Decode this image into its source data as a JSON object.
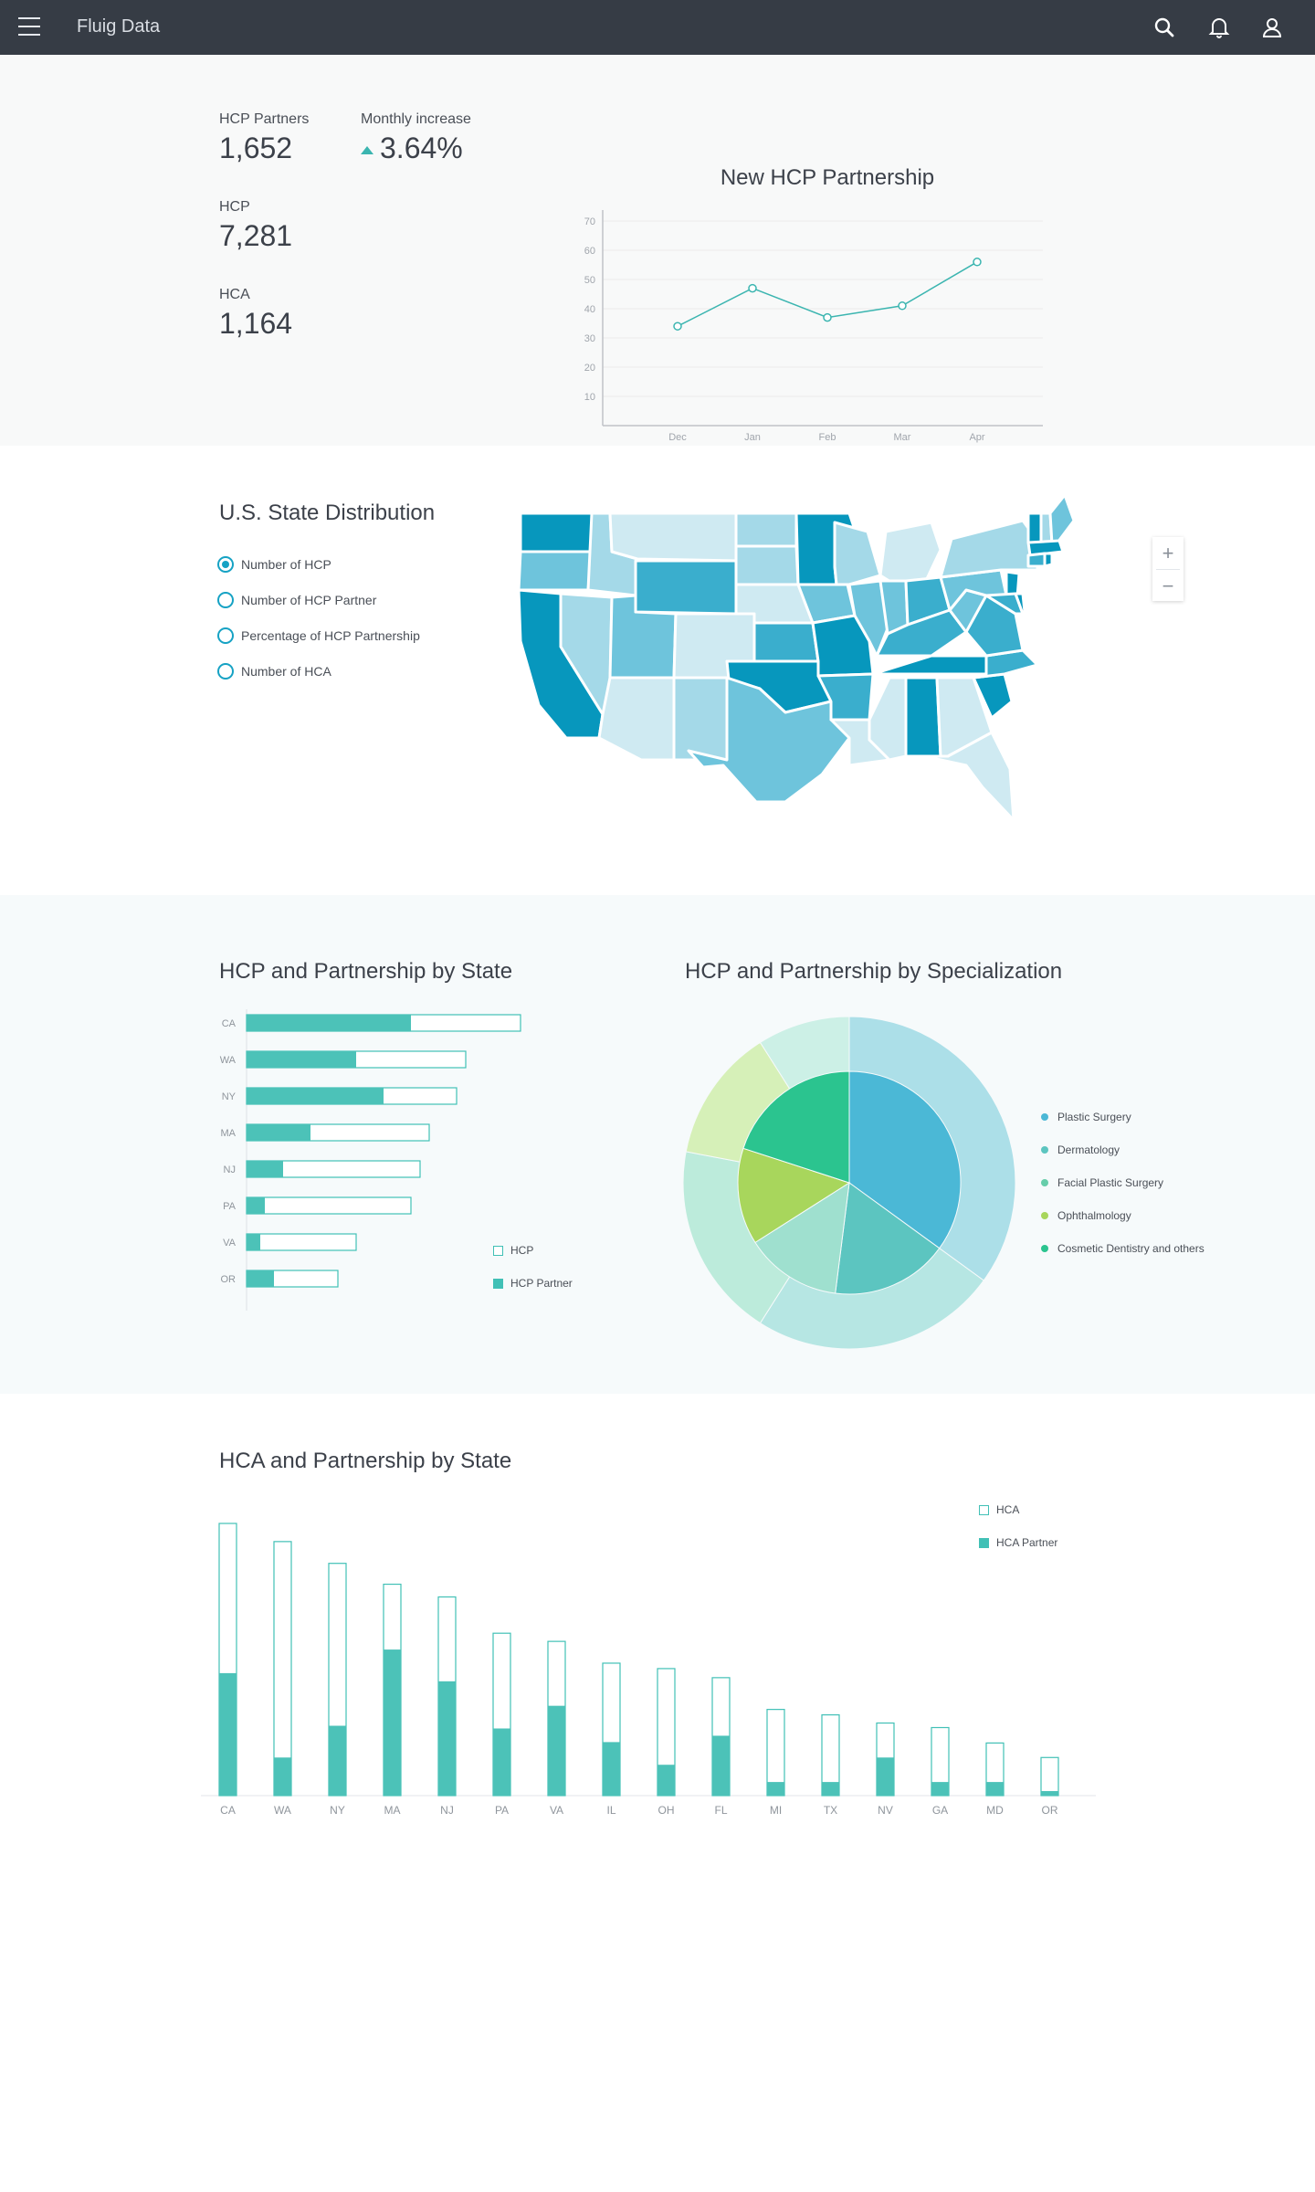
{
  "nav": {
    "title": "Fluig Data",
    "icons": [
      "menu-icon",
      "search-icon",
      "bell-icon",
      "user-icon"
    ]
  },
  "kpis": {
    "hcp_partners_label": "HCP Partners",
    "hcp_partners_value": "1,652",
    "monthly_increase_label": "Monthly increase",
    "monthly_increase_value": "3.64%",
    "hcp_label": "HCP",
    "hcp_value": "7,281",
    "hca_label": "HCA",
    "hca_value": "1,164"
  },
  "line_chart": {
    "type": "line",
    "title": "New HCP Partnership",
    "x": [
      "Dec",
      "Jan",
      "Feb",
      "Mar",
      "Apr"
    ],
    "values": [
      34,
      47,
      37,
      41,
      56
    ],
    "ylim": [
      0,
      70
    ],
    "yticks": [
      "10",
      "20",
      "30",
      "40",
      "50",
      "60",
      "70"
    ],
    "color": "#3bb5b0"
  },
  "map": {
    "title": "U.S. State Distribution",
    "options": [
      {
        "label": "Number of HCP",
        "selected": true
      },
      {
        "label": "Number of HCP Partner",
        "selected": false
      },
      {
        "label": "Percentage of HCP Partnership",
        "selected": false
      },
      {
        "label": "Number of HCA",
        "selected": false
      }
    ],
    "zoom_in": "+",
    "zoom_out": "−",
    "palette": [
      "#0797bd",
      "#3aaecd",
      "#6ec4dc",
      "#a4d9e8",
      "#cfeaf2"
    ]
  },
  "chart_data": [
    {
      "type": "bar",
      "orientation": "horizontal",
      "title": "HCP and Partnership by State",
      "categories": [
        "CA",
        "WA",
        "NY",
        "MA",
        "NJ",
        "PA",
        "VA",
        "OR"
      ],
      "series": [
        {
          "name": "HCP",
          "values": [
            300,
            240,
            230,
            200,
            190,
            180,
            120,
            100
          ]
        },
        {
          "name": "HCP Partner",
          "values": [
            180,
            120,
            150,
            70,
            40,
            20,
            15,
            30
          ]
        }
      ],
      "legend": [
        "HCP",
        "HCP Partner"
      ]
    },
    {
      "type": "pie",
      "title": "HCP and Partnership by Specialization",
      "legend": [
        {
          "name": "Plastic Surgery",
          "color": "#4bb8d6"
        },
        {
          "name": "Dermatology",
          "color": "#5cc5c0"
        },
        {
          "name": "Facial Plastic Surgery",
          "color": "#66cdaa"
        },
        {
          "name": "Ophthalmology",
          "color": "#a8d65c"
        },
        {
          "name": "Cosmetic Dentistry and others",
          "color": "#2bc48f"
        }
      ],
      "outer_ring": [
        35,
        24,
        19,
        13,
        9
      ],
      "inner_ring": [
        35,
        17,
        14,
        14,
        20
      ]
    },
    {
      "type": "bar",
      "title": "HCA and Partnership by State",
      "categories": [
        "CA",
        "WA",
        "NY",
        "MA",
        "NJ",
        "PA",
        "VA",
        "IL",
        "OH",
        "FL",
        "MI",
        "TX",
        "NV",
        "GA",
        "MD",
        "OR"
      ],
      "series": [
        {
          "name": "HCA",
          "values": [
            300,
            280,
            256,
            233,
            219,
            179,
            170,
            146,
            140,
            130,
            95,
            89,
            80,
            75,
            58,
            42
          ]
        },
        {
          "name": "HCA Partner",
          "values": [
            135,
            42,
            77,
            161,
            126,
            74,
            99,
            59,
            34,
            66,
            15,
            15,
            42,
            15,
            15,
            5
          ]
        }
      ],
      "legend": [
        "HCA",
        "HCA Partner"
      ]
    }
  ]
}
